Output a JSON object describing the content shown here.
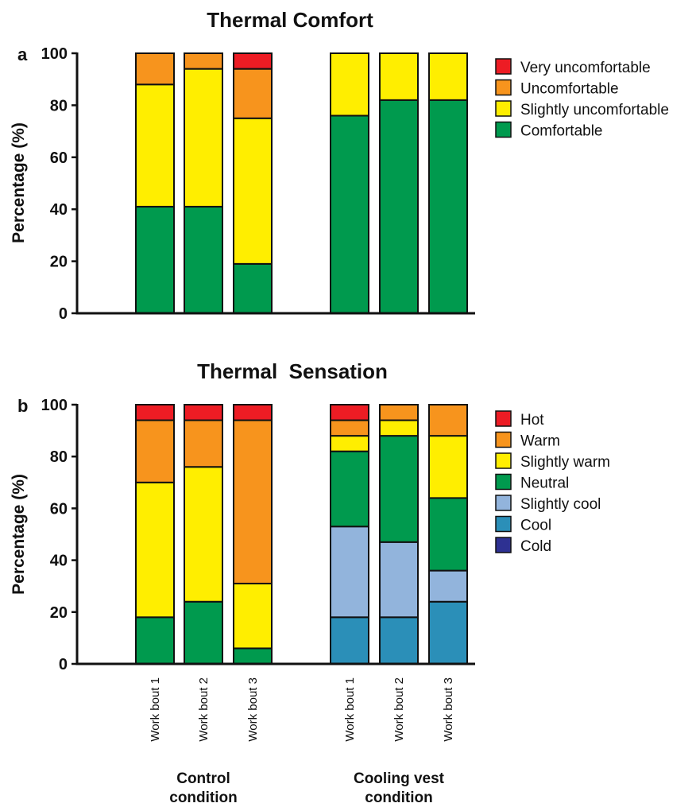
{
  "chart_data": [
    {
      "type": "bar",
      "stacked": true,
      "panel": "a",
      "title": "Thermal Comfort",
      "ylabel": "Percentage (%)",
      "ylim": [
        0,
        100
      ],
      "yticks": [
        0,
        20,
        40,
        60,
        80,
        100
      ],
      "legend_position": "right",
      "categories": [
        "Work bout 1",
        "Work bout 2",
        "Work bout 3",
        "Work bout 1",
        "Work bout 2",
        "Work bout 3"
      ],
      "groups": [
        "Control condition",
        "Cooling vest condition"
      ],
      "series": [
        {
          "name": "Comfortable",
          "color": "#009a4e",
          "values": [
            41,
            41,
            19,
            76,
            82,
            82
          ]
        },
        {
          "name": "Slightly uncomfortable",
          "color": "#ffee00",
          "values": [
            47,
            53,
            56,
            24,
            18,
            18
          ]
        },
        {
          "name": "Uncomfortable",
          "color": "#f7941d",
          "values": [
            12,
            6,
            19,
            0,
            0,
            0
          ]
        },
        {
          "name": "Very uncomfortable",
          "color": "#ed1c24",
          "values": [
            0,
            0,
            6,
            0,
            0,
            0
          ]
        }
      ]
    },
    {
      "type": "bar",
      "stacked": true,
      "panel": "b",
      "title": "Thermal  Sensation",
      "ylabel": "Percentage (%)",
      "ylim": [
        0,
        100
      ],
      "yticks": [
        0,
        20,
        40,
        60,
        80,
        100
      ],
      "legend_position": "right",
      "categories": [
        "Work bout 1",
        "Work bout 2",
        "Work bout 3",
        "Work bout 1",
        "Work bout 2",
        "Work bout 3"
      ],
      "groups": [
        "Control condition",
        "Cooling vest condition"
      ],
      "series": [
        {
          "name": "Cold",
          "color": "#2e3192",
          "values": [
            0,
            0,
            0,
            0,
            0,
            0
          ]
        },
        {
          "name": "Cool",
          "color": "#2b8fb8",
          "values": [
            0,
            0,
            0,
            18,
            18,
            24
          ]
        },
        {
          "name": "Slightly cool",
          "color": "#92b4dc",
          "values": [
            0,
            0,
            0,
            35,
            29,
            12
          ]
        },
        {
          "name": "Neutral",
          "color": "#009a4e",
          "values": [
            18,
            24,
            6,
            29,
            41,
            28
          ]
        },
        {
          "name": "Slightly warm",
          "color": "#ffee00",
          "values": [
            52,
            52,
            25,
            6,
            6,
            24
          ]
        },
        {
          "name": "Warm",
          "color": "#f7941d",
          "values": [
            24,
            18,
            63,
            6,
            6,
            12
          ]
        },
        {
          "name": "Hot",
          "color": "#ed1c24",
          "values": [
            6,
            6,
            6,
            6,
            0,
            0
          ]
        }
      ]
    }
  ],
  "x_group_labels": [
    {
      "line1": "Control",
      "line2": "condition"
    },
    {
      "line1": "Cooling vest",
      "line2": "condition"
    }
  ]
}
